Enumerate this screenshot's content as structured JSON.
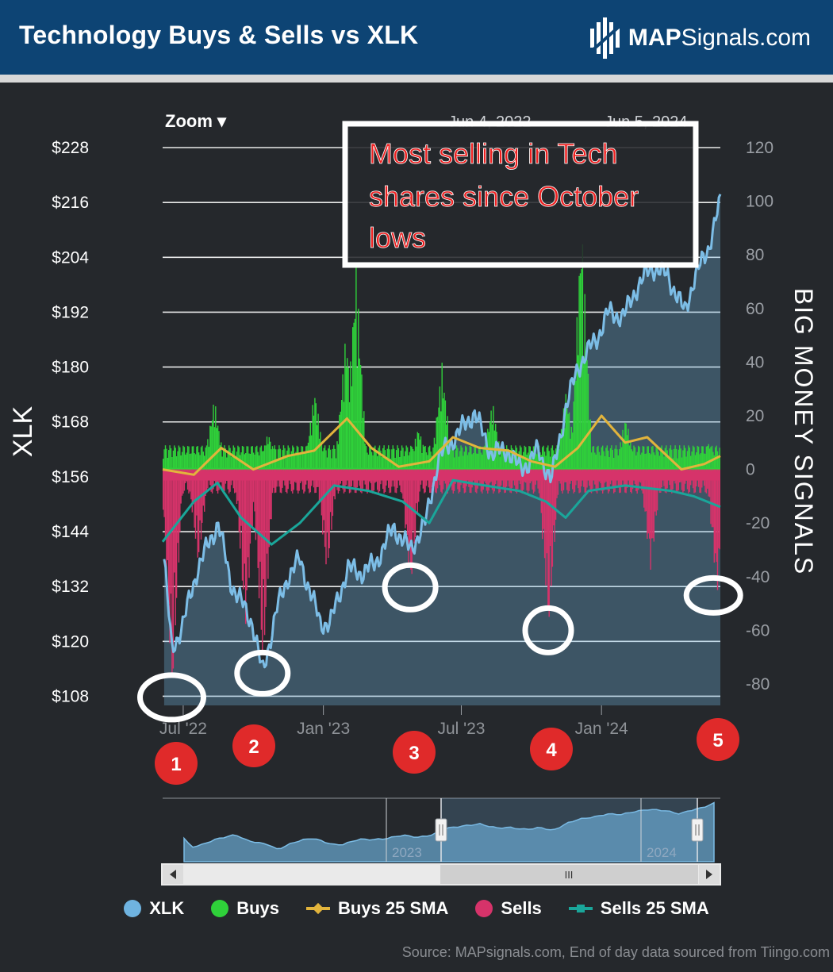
{
  "header": {
    "title": "Technology Buys & Sells vs XLK",
    "brand_bold": "MAP",
    "brand_rest": "Signals.com"
  },
  "chart_controls": {
    "zoom_label": "Zoom ▾",
    "date_from": "Jun 4, 2022",
    "date_arrow": "→",
    "date_to": "Jun 5, 2024"
  },
  "annotation": {
    "line1": "Most selling in Tech",
    "line2": "shares since October",
    "line3": "lows"
  },
  "markers": [
    "1",
    "2",
    "3",
    "4",
    "5"
  ],
  "navigator": {
    "label_left": "2023",
    "label_right": "2024",
    "scroll_grip": "III"
  },
  "legend": [
    {
      "label": "XLK",
      "color": "#6fb3e0",
      "style": "dot"
    },
    {
      "label": "Buys",
      "color": "#2fd13a",
      "style": "dot"
    },
    {
      "label": "Buys 25 SMA",
      "color": "#e2b43c",
      "style": "sma-diamond"
    },
    {
      "label": "Sells",
      "color": "#d6336a",
      "style": "dot"
    },
    {
      "label": "Sells 25 SMA",
      "color": "#1aa69a",
      "style": "sma-square"
    }
  ],
  "source": "Source: MAPsignals.com, End of day data sourced from Tiingo.com",
  "chart_data": {
    "type": "line",
    "left_axis": {
      "label": "XLK",
      "ticks": [
        "$108",
        "$120",
        "$132",
        "$144",
        "$156",
        "$168",
        "$180",
        "$192",
        "$204",
        "$216",
        "$228"
      ],
      "range": [
        106,
        228
      ]
    },
    "right_axis": {
      "label": "BIG MONEY SIGNALS",
      "ticks": [
        "-80",
        "-60",
        "-40",
        "-20",
        "0",
        "20",
        "40",
        "60",
        "80",
        "100",
        "120"
      ],
      "range": [
        -88,
        120
      ]
    },
    "x_ticks": [
      "Jul '22",
      "Jan '23",
      "Jul '23",
      "Jan '24"
    ],
    "x_range": [
      "2022-06-04",
      "2024-06-05"
    ],
    "series": [
      {
        "name": "XLK",
        "axis": "left",
        "x": [
          "2022-06-06",
          "2022-06-16",
          "2022-07-01",
          "2022-07-20",
          "2022-08-16",
          "2022-09-01",
          "2022-09-30",
          "2022-10-13",
          "2022-11-01",
          "2022-11-15",
          "2022-12-01",
          "2022-12-28",
          "2023-01-10",
          "2023-02-02",
          "2023-02-20",
          "2023-03-10",
          "2023-04-03",
          "2023-04-25",
          "2023-05-15",
          "2023-06-01",
          "2023-06-15",
          "2023-07-18",
          "2023-08-10",
          "2023-08-30",
          "2023-09-15",
          "2023-09-28",
          "2023-10-10",
          "2023-10-27",
          "2023-11-15",
          "2023-12-01",
          "2023-12-28",
          "2024-01-10",
          "2024-01-30",
          "2024-02-15",
          "2024-03-07",
          "2024-03-28",
          "2024-04-19",
          "2024-05-01",
          "2024-05-20",
          "2024-06-05"
        ],
        "y": [
          138,
          118,
          124,
          136,
          146,
          133,
          124,
          113,
          127,
          134,
          138,
          124,
          124,
          136,
          135,
          137,
          145,
          140,
          146,
          160,
          163,
          170,
          161,
          162,
          158,
          159,
          162,
          155,
          171,
          180,
          187,
          192,
          191,
          197,
          202,
          200,
          192,
          199,
          206,
          216
        ]
      },
      {
        "name": "Buys 25 SMA",
        "axis": "right",
        "x": [
          "2022-06-04",
          "2022-07-15",
          "2022-08-20",
          "2022-10-01",
          "2022-11-15",
          "2022-12-20",
          "2023-02-01",
          "2023-03-05",
          "2023-04-10",
          "2023-05-20",
          "2023-06-20",
          "2023-07-25",
          "2023-09-01",
          "2023-10-01",
          "2023-11-01",
          "2023-12-01",
          "2024-01-01",
          "2024-02-01",
          "2024-03-01",
          "2024-04-15",
          "2024-05-15",
          "2024-06-05"
        ],
        "y": [
          0,
          -2,
          8,
          0,
          5,
          7,
          19,
          8,
          1,
          3,
          12,
          8,
          7,
          3,
          1,
          8,
          20,
          10,
          12,
          0,
          2,
          5
        ]
      },
      {
        "name": "Sells 25 SMA",
        "axis": "right",
        "x": [
          "2022-06-04",
          "2022-07-15",
          "2022-08-15",
          "2022-09-15",
          "2022-10-25",
          "2022-12-01",
          "2023-01-15",
          "2023-03-01",
          "2023-04-15",
          "2023-05-20",
          "2023-06-20",
          "2023-08-01",
          "2023-09-15",
          "2023-10-20",
          "2023-11-15",
          "2023-12-15",
          "2024-02-01",
          "2024-04-01",
          "2024-05-01",
          "2024-06-05"
        ],
        "y": [
          -27,
          -12,
          -5,
          -18,
          -28,
          -20,
          -6,
          -8,
          -12,
          -20,
          -4,
          -6,
          -8,
          -12,
          -18,
          -8,
          -6,
          -8,
          -10,
          -14
        ]
      }
    ],
    "bars": {
      "buys_peaks": [
        [
          "2022-08-10",
          27
        ],
        [
          "2022-10-20",
          14
        ],
        [
          "2022-12-20",
          30
        ],
        [
          "2023-01-30",
          52
        ],
        [
          "2023-02-12",
          78
        ],
        [
          "2023-05-05",
          16
        ],
        [
          "2023-06-05",
          40
        ],
        [
          "2023-08-10",
          26
        ],
        [
          "2023-11-15",
          30
        ],
        [
          "2023-12-05",
          95
        ],
        [
          "2024-02-01",
          20
        ],
        [
          "2024-05-20",
          10
        ]
      ],
      "sells_peaks": [
        [
          "2022-06-16",
          -85
        ],
        [
          "2022-07-20",
          -36
        ],
        [
          "2022-09-20",
          -60
        ],
        [
          "2022-10-13",
          -76
        ],
        [
          "2023-01-05",
          -40
        ],
        [
          "2023-04-25",
          -44
        ],
        [
          "2023-10-23",
          -60
        ],
        [
          "2024-03-05",
          -38
        ],
        [
          "2024-05-31",
          -47
        ]
      ]
    }
  }
}
